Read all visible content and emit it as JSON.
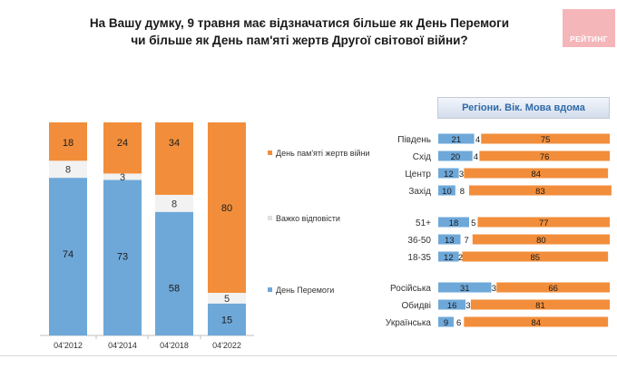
{
  "title_line1": "На Вашу думку, 9 травня має відзначатися більше як День Перемоги",
  "title_line2": "чи більше як День пам'яті жертв Другої світової війни?",
  "logo_text": "РЕЙТИНГ",
  "colors": {
    "victory": "#6ea8d9",
    "difficult": "#f2f2f2",
    "memory": "#f28e3b",
    "logo": "#f4b6b9"
  },
  "chart_data": [
    {
      "type": "bar",
      "stacked": true,
      "categories": [
        "04'2012",
        "04'2014",
        "04'2018",
        "04'2022"
      ],
      "series": [
        {
          "name": "День Перемоги",
          "key": "victory",
          "values": [
            74,
            73,
            58,
            15
          ]
        },
        {
          "name": "Важко відповісти",
          "key": "difficult",
          "values": [
            8,
            3,
            8,
            5
          ]
        },
        {
          "name": "День пам'яті жертв війни",
          "key": "memory",
          "values": [
            18,
            24,
            34,
            80
          ]
        }
      ],
      "legend": [
        "День пам'яті жертв війни",
        "Важко відповісти",
        "День Перемоги"
      ],
      "legend_placement": "right",
      "ylim": [
        0,
        100
      ]
    },
    {
      "type": "bar",
      "orientation": "horizontal",
      "stacked": true,
      "title": "Регіони. Вік. Мова вдома",
      "groups": [
        {
          "name": "Регіони",
          "categories": [
            "Південь",
            "Схід",
            "Центр",
            "Захід"
          ],
          "victory": [
            21,
            20,
            12,
            10
          ],
          "difficult": [
            4,
            4,
            3,
            8
          ],
          "memory": [
            75,
            76,
            84,
            83
          ]
        },
        {
          "name": "Вік",
          "categories": [
            "51+",
            "36-50",
            "18-35"
          ],
          "victory": [
            18,
            13,
            12
          ],
          "difficult": [
            5,
            7,
            2
          ],
          "memory": [
            77,
            80,
            85
          ]
        },
        {
          "name": "Мова вдома",
          "categories": [
            "Російська",
            "Обидві",
            "Українська"
          ],
          "victory": [
            31,
            16,
            9
          ],
          "difficult": [
            3,
            3,
            6
          ],
          "memory": [
            66,
            81,
            84
          ]
        }
      ],
      "xlim": [
        0,
        100
      ]
    }
  ]
}
